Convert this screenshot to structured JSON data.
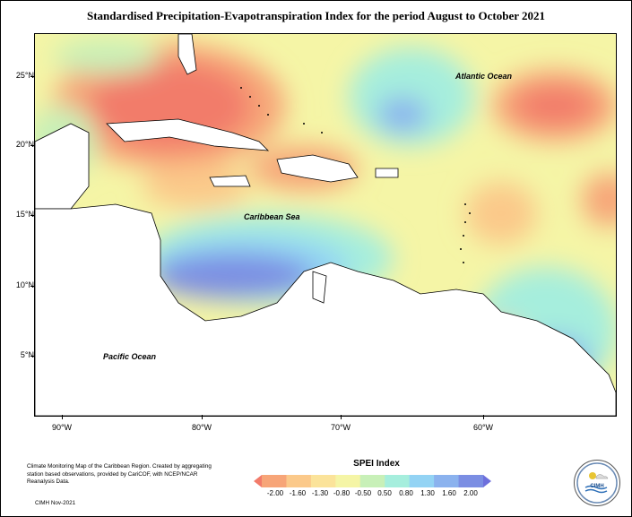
{
  "title": "Standardised Precipitation-Evapotranspiration Index for the period August to October 2021",
  "map": {
    "x_axis_labels": [
      "90°W",
      "80°W",
      "70°W",
      "60°W"
    ],
    "y_axis_labels": [
      "25°N",
      "20°N",
      "15°N",
      "10°N",
      "5°N"
    ],
    "ocean_labels": {
      "atlantic": "Atlantic Ocean",
      "caribbean": "Caribbean Sea",
      "pacific": "Pacific Ocean"
    }
  },
  "legend": {
    "title": "SPEI Index",
    "values": [
      "-2.00",
      "-1.60",
      "-1.30",
      "-0.80",
      "-0.50",
      "0.50",
      "0.80",
      "1.30",
      "1.60",
      "2.00"
    ],
    "colors": [
      "#f27b6a",
      "#f7a578",
      "#fbc98a",
      "#fbe39a",
      "#f5f5a6",
      "#c8f0b8",
      "#a6eedd",
      "#93d3f4",
      "#8bb2ee",
      "#7b8ee3",
      "#6d6fdc"
    ]
  },
  "credits": "Climate Monitoring Map of the Caribbean Region. Created by aggregating station based observations, provided by CariCOF, with NCEP/NCAR Reanalysis Data.",
  "date": "CIMH Nov-2021",
  "logo_text": "CIMH"
}
